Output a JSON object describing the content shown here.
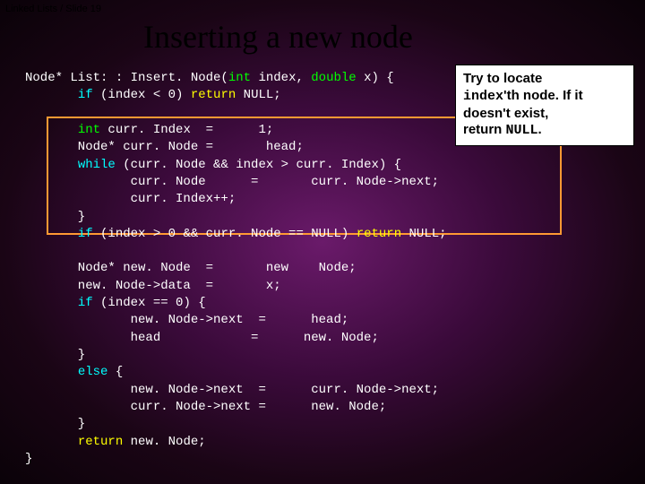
{
  "breadcrumb": "Linked Lists / Slide 19",
  "title": "Inserting a new node",
  "callout": {
    "line1": "Try to locate",
    "line2a": "index",
    "line2b": "'th node. If it",
    "line3": "doesn't exist,",
    "line4a": "return ",
    "line4b": "NULL",
    "line4c": "."
  },
  "code": {
    "l1a": "Node* List: : Insert. Node(",
    "l1b": "int",
    "l1c": " index, ",
    "l1d": "double",
    "l1e": " x) {",
    "l2a": "       ",
    "l2b": "if",
    "l2c": " (index < 0) ",
    "l2d": "return",
    "l2e": " NULL;",
    "blank1": " ",
    "l3a": "       ",
    "l3b": "int",
    "l3c": " curr. Index  =      1;",
    "l4": "       Node* curr. Node =       head;",
    "l5a": "       ",
    "l5b": "while",
    "l5c": " (curr. Node && index > curr. Index) {",
    "l6": "              curr. Node      =       curr. Node->next;",
    "l7": "              curr. Index++;",
    "l8": "       }",
    "l9a": "       ",
    "l9b": "if",
    "l9c": " (index > 0 && curr. Node == NULL) ",
    "l9d": "return",
    "l9e": " NULL;",
    "blank2": " ",
    "l10": "       Node* new. Node  =       new    Node;",
    "l11": "       new. Node->data  =       x;",
    "l12a": "       ",
    "l12b": "if",
    "l12c": " (index == 0) {",
    "l13": "              new. Node->next  =      head;",
    "l14": "              head            =      new. Node;",
    "l15": "       }",
    "l16a": "       ",
    "l16b": "else",
    "l16c": " {",
    "l17": "              new. Node->next  =      curr. Node->next;",
    "l18": "              curr. Node->next =      new. Node;",
    "l19": "       }",
    "l20a": "       ",
    "l20b": "return",
    "l20c": " new. Node;",
    "l21": "}"
  },
  "colors": {
    "keyword_green": "#00ff00",
    "keyword_cyan": "#00ffff",
    "keyword_yellow": "#ffff00",
    "text_white": "#ffffff",
    "highlight_border": "#ff9933",
    "callout_bg": "#ffffff"
  }
}
